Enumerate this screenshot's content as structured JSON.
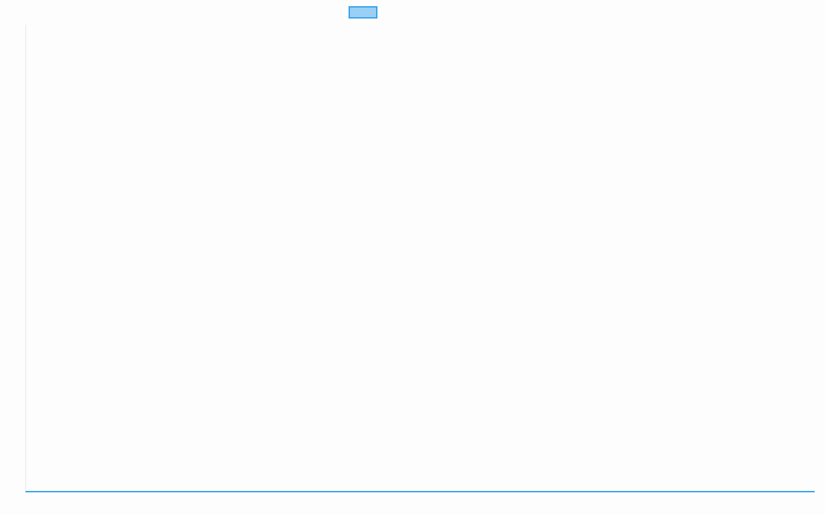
{
  "chart_data": {
    "type": "line",
    "title": "",
    "xlabel": "",
    "ylabel": "",
    "legend": {
      "placement": "top",
      "entries": [
        ""
      ]
    },
    "grid": false,
    "series": [
      {
        "name": "",
        "color": "#36a2eb",
        "fill": "#9ad0f5",
        "values": [
          0,
          0
        ]
      }
    ]
  }
}
